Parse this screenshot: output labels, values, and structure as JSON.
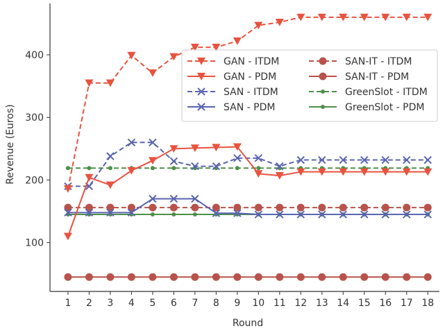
{
  "chart_data": {
    "type": "line",
    "xlabel": "Round",
    "ylabel": "Revenue (Euros)",
    "x": [
      1,
      2,
      3,
      4,
      5,
      6,
      7,
      8,
      9,
      10,
      11,
      12,
      13,
      14,
      15,
      16,
      17,
      18
    ],
    "xlim": [
      0.15,
      18.55
    ],
    "ylim": [
      22,
      482
    ],
    "yticks": [
      100,
      200,
      300,
      400
    ],
    "legend_position": "upper-right",
    "series": [
      {
        "name": "GAN - ITDM",
        "color": "#e8533f",
        "dash": "dashed",
        "marker": "triangle-down",
        "values": [
          186,
          355,
          355,
          399,
          371,
          397,
          412,
          412,
          422,
          447,
          452,
          460,
          460,
          460,
          460,
          460,
          460,
          460
        ]
      },
      {
        "name": "GAN - PDM",
        "color": "#e8533f",
        "dash": "solid",
        "marker": "triangle-down",
        "values": [
          110,
          204,
          192,
          215,
          231,
          250,
          251,
          252,
          253,
          210,
          207,
          213,
          213,
          213,
          213,
          213,
          213,
          213
        ]
      },
      {
        "name": "SAN - ITDM",
        "color": "#5964b0",
        "dash": "dashed",
        "marker": "x",
        "values": [
          190,
          190,
          238,
          260,
          260,
          230,
          222,
          222,
          235,
          235,
          222,
          232,
          232,
          232,
          232,
          232,
          232,
          232
        ]
      },
      {
        "name": "SAN - PDM",
        "color": "#5964b0",
        "dash": "solid",
        "marker": "x",
        "values": [
          148,
          148,
          148,
          148,
          170,
          170,
          170,
          147,
          147,
          145,
          145,
          145,
          145,
          145,
          145,
          145,
          145,
          145
        ]
      },
      {
        "name": "SAN-IT - ITDM",
        "color": "#b8534c",
        "dash": "dashed",
        "marker": "circle",
        "values": [
          156,
          156,
          156,
          156,
          156,
          156,
          156,
          156,
          156,
          156,
          156,
          156,
          156,
          156,
          156,
          156,
          156,
          156
        ]
      },
      {
        "name": "SAN-IT - PDM",
        "color": "#b8534c",
        "dash": "solid",
        "marker": "circle",
        "values": [
          45,
          45,
          45,
          45,
          45,
          45,
          45,
          45,
          45,
          45,
          45,
          45,
          45,
          45,
          45,
          45,
          45,
          45
        ]
      },
      {
        "name": "GreenSlot - ITDM",
        "color": "#4e8f4a",
        "dash": "dashed",
        "marker": "dot",
        "values": [
          219,
          219,
          219,
          219,
          219,
          219,
          219,
          219,
          219,
          219,
          219,
          219,
          219,
          219,
          219,
          219,
          219,
          219
        ]
      },
      {
        "name": "GreenSlot - PDM",
        "color": "#4e8f4a",
        "dash": "solid",
        "marker": "dot",
        "values": [
          145,
          145,
          145,
          145,
          145,
          145,
          145,
          145,
          145,
          145,
          145,
          145,
          145,
          145,
          145,
          145,
          145,
          145
        ]
      }
    ]
  }
}
